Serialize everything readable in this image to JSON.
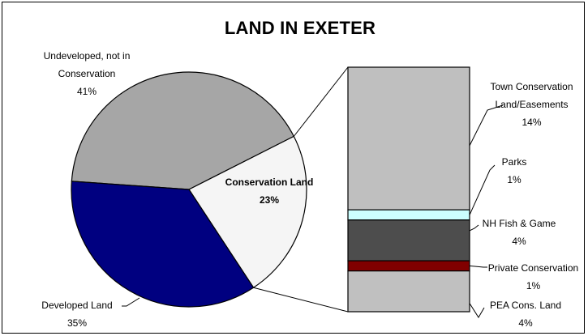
{
  "chart_data": [
    {
      "type": "pie",
      "title": "LAND IN EXETER",
      "slices": [
        {
          "name": "Undeveloped, not in Conservation",
          "label_lines": [
            "Undeveloped, not in",
            "Conservation"
          ],
          "value": 41,
          "pct_label": "41%",
          "color": "#a6a6a6"
        },
        {
          "name": "Conservation Land",
          "label_lines": [
            "Conservation Land"
          ],
          "value": 23,
          "pct_label": "23%",
          "color": "#f5f5f5"
        },
        {
          "name": "Developed Land",
          "label_lines": [
            "Developed Land"
          ],
          "value": 35,
          "pct_label": "35%",
          "color": "#000080"
        }
      ]
    },
    {
      "type": "bar",
      "stacked": true,
      "breakdown_of": "Conservation Land",
      "segments": [
        {
          "name": "Town Conservation Land/Easements",
          "label_lines": [
            "Town Conservation",
            "Land/Easements"
          ],
          "value": 14,
          "pct_label": "14%",
          "color": "#bfbfbf"
        },
        {
          "name": "Parks",
          "label_lines": [
            "Parks"
          ],
          "value": 1,
          "pct_label": "1%",
          "color": "#ccffff"
        },
        {
          "name": "NH Fish & Game",
          "label_lines": [
            "NH Fish & Game"
          ],
          "value": 4,
          "pct_label": "4%",
          "color": "#4d4d4d"
        },
        {
          "name": "Private Conservation",
          "label_lines": [
            "Private Conservation"
          ],
          "value": 1,
          "pct_label": "1%",
          "color": "#800000"
        },
        {
          "name": "PEA Cons. Land",
          "label_lines": [
            "PEA Cons. Land"
          ],
          "value": 4,
          "pct_label": "4%",
          "color": "#c0c0c0"
        }
      ]
    }
  ]
}
